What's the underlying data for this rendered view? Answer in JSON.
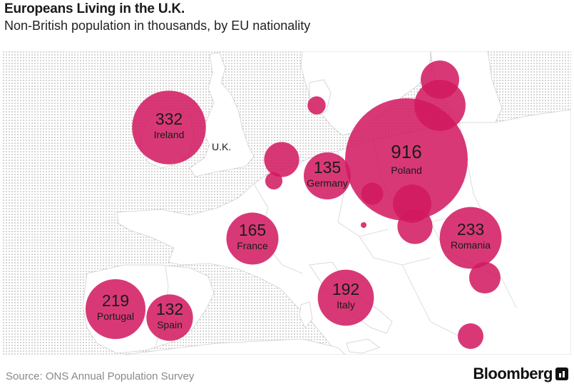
{
  "header": {
    "title": "Europeans Living in the U.K.",
    "subtitle": "Non-British population in thousands, by EU nationality"
  },
  "colors": {
    "bubble": "#d2185f",
    "land": "#ffffff",
    "dots": "#9a9a9a",
    "label": "#1a1a1a"
  },
  "map": {
    "uk_label": "U.K."
  },
  "chart_data": {
    "type": "bubble-map",
    "title": "Europeans Living in the U.K.",
    "subtitle": "Non-British population in thousands, by EU nationality",
    "unit": "thousands",
    "labeled": [
      {
        "country": "Poland",
        "value": 916
      },
      {
        "country": "Ireland",
        "value": 332
      },
      {
        "country": "Romania",
        "value": 233
      },
      {
        "country": "Portugal",
        "value": 219
      },
      {
        "country": "Italy",
        "value": 192
      },
      {
        "country": "France",
        "value": 165
      },
      {
        "country": "Germany",
        "value": 135
      },
      {
        "country": "Spain",
        "value": 132
      }
    ],
    "unlabeled_estimates": [
      {
        "id": "lithuania",
        "value": 160
      },
      {
        "id": "latvia",
        "value": 90
      },
      {
        "id": "slovakia",
        "value": 90
      },
      {
        "id": "netherlands",
        "value": 75
      },
      {
        "id": "hungary",
        "value": 75
      },
      {
        "id": "bulgaria",
        "value": 60
      },
      {
        "id": "greece",
        "value": 40
      },
      {
        "id": "denmark",
        "value": 20
      },
      {
        "id": "czech-republic",
        "value": 30
      },
      {
        "id": "belgium",
        "value": 18
      },
      {
        "id": "austria",
        "value": 2
      }
    ]
  },
  "footer": {
    "source": "Source:  ONS Annual Population Survey",
    "brand": "Bloomberg"
  }
}
